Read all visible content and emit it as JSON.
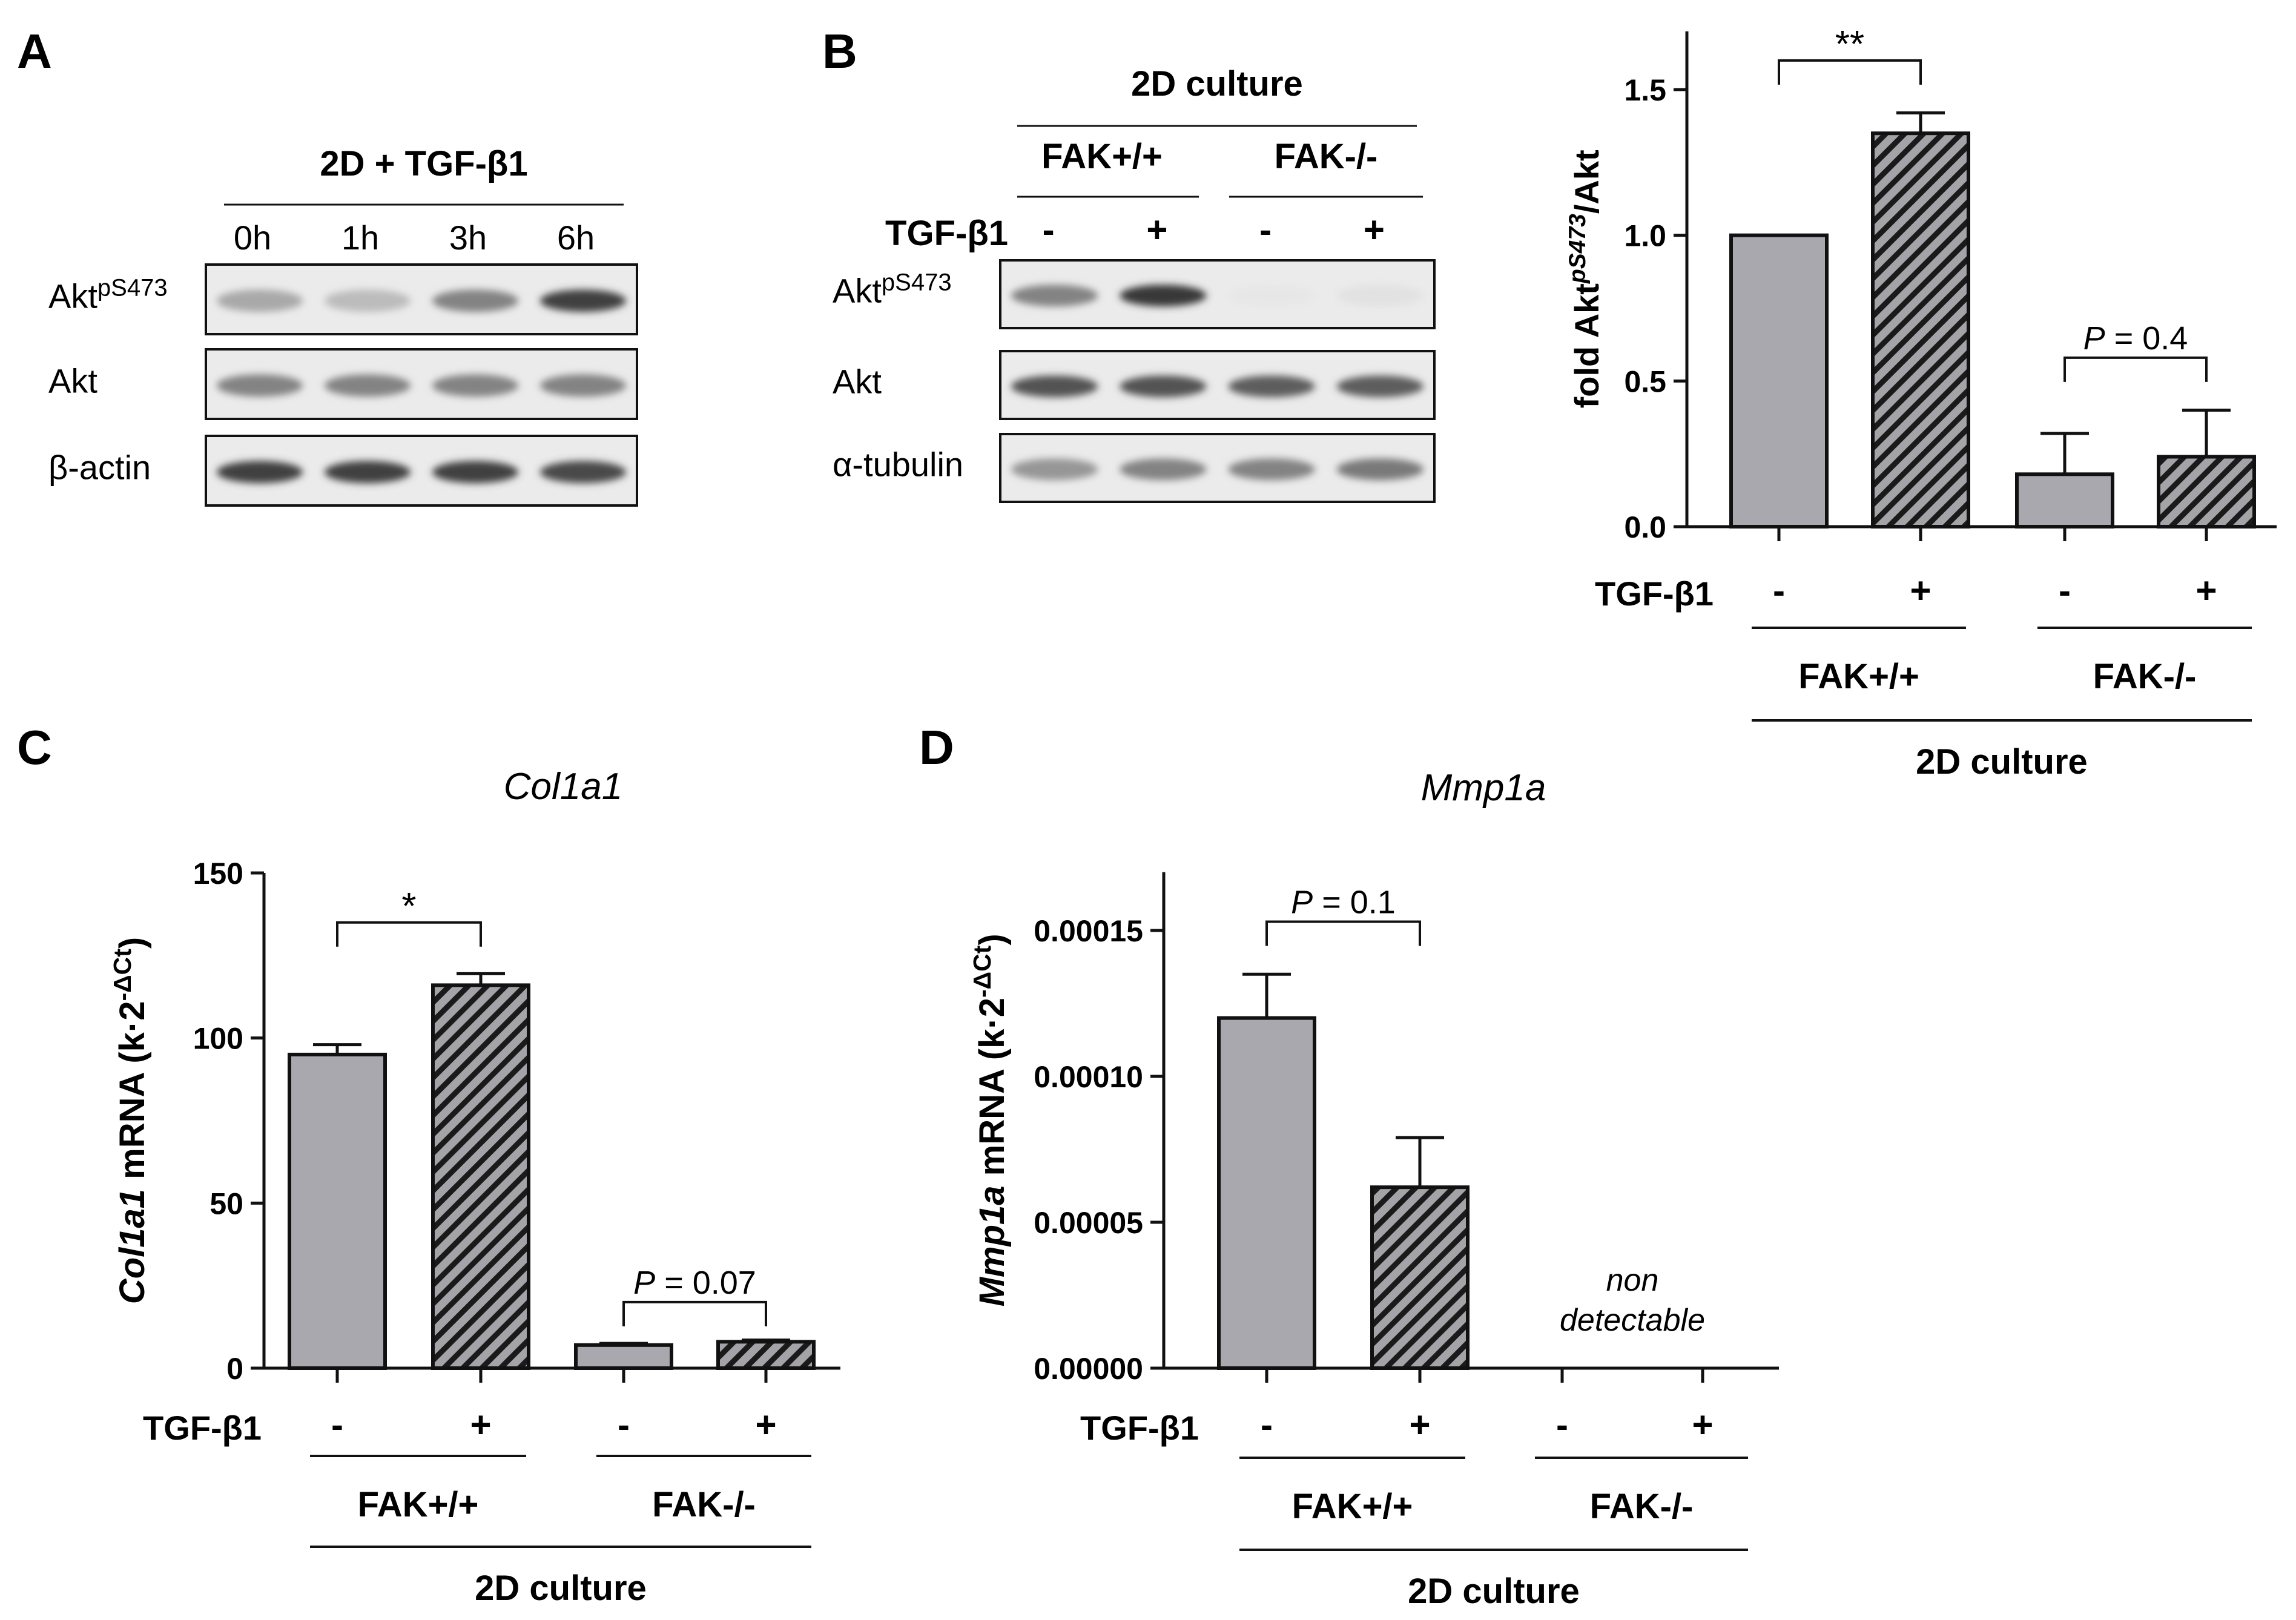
{
  "colors": {
    "gray_bar": "#a8a8ae",
    "blot_bg": "#ebebeb",
    "hatch_bg": "#a4a4a8",
    "text": "#111111"
  },
  "panels": {
    "A": {
      "letter": "A",
      "condition": "2D + TGF-β1",
      "timepoints": [
        "0h",
        "1h",
        "3h",
        "6h"
      ],
      "rows": [
        {
          "base": "Akt",
          "sup": "pS473",
          "band_intensity": [
            0.35,
            0.25,
            0.55,
            0.9
          ]
        },
        {
          "base": "Akt",
          "sup": "",
          "band_intensity": [
            0.55,
            0.55,
            0.55,
            0.55
          ]
        },
        {
          "base": "β-actin",
          "sup": "",
          "band_intensity": [
            0.9,
            0.9,
            0.9,
            0.85
          ]
        }
      ]
    },
    "B": {
      "letter": "B",
      "condition": "2D culture",
      "genotypes": [
        "FAK+/+",
        "FAK-/-"
      ],
      "treatment_label": "TGF-β1",
      "treatment_signs": [
        "-",
        "+",
        "-",
        "+"
      ],
      "rows": [
        {
          "base": "Akt",
          "sup": "pS473",
          "band_intensity": [
            0.55,
            0.95,
            0.02,
            0.05
          ]
        },
        {
          "base": "Akt",
          "sup": "",
          "band_intensity": [
            0.8,
            0.8,
            0.75,
            0.75
          ]
        },
        {
          "base": "α-tubulin",
          "sup": "",
          "band_intensity": [
            0.45,
            0.55,
            0.55,
            0.6
          ]
        }
      ]
    },
    "C": {
      "letter": "C"
    },
    "D": {
      "letter": "D"
    }
  },
  "chart_data": [
    {
      "id": "B-quant",
      "type": "bar",
      "title": "",
      "ylabel_parts": {
        "pre": "fold Akt",
        "sup": "pS473",
        "post": "/Akt"
      },
      "ylabel_italic": false,
      "yticks": [
        "0.0",
        "0.5",
        "1.0",
        "1.5"
      ],
      "ylim": [
        0,
        1.5
      ],
      "yaxis_top": 1.7,
      "categories": [
        "FAK+/+ -",
        "FAK+/+ +",
        "FAK-/- -",
        "FAK-/- +"
      ],
      "values": [
        1.0,
        1.35,
        0.18,
        0.24
      ],
      "errors": [
        0,
        0.07,
        0.14,
        0.16
      ],
      "hatched": [
        false,
        true,
        false,
        true
      ],
      "treatment_label": "TGF-β1",
      "treatment_signs": [
        "-",
        "+",
        "-",
        "+"
      ],
      "groups": [
        "FAK+/+",
        "FAK-/-"
      ],
      "culture_label": "2D culture",
      "annotations": [
        {
          "bars": [
            0,
            1
          ],
          "text": "**",
          "y": 1.6
        },
        {
          "bars": [
            2,
            3
          ],
          "text": "P = 0.4",
          "y": 0.58
        }
      ]
    },
    {
      "id": "C",
      "type": "bar",
      "title": "Col1a1",
      "ylabel_parts": {
        "pre": "Col1a1",
        "mid": " mRNA (k·2",
        "sup": "-ΔCt",
        "post": ")"
      },
      "ylabel_italic": false,
      "yticks": [
        "0",
        "50",
        "100",
        "150"
      ],
      "ylim": [
        0,
        150
      ],
      "yaxis_top": 150,
      "categories": [
        "FAK+/+ -",
        "FAK+/+ +",
        "FAK-/- -",
        "FAK-/- +"
      ],
      "values": [
        95,
        116,
        7,
        8
      ],
      "errors": [
        3,
        3.5,
        0.5,
        0.5
      ],
      "hatched": [
        false,
        true,
        false,
        true
      ],
      "treatment_label": "TGF-β1",
      "treatment_signs": [
        "-",
        "+",
        "-",
        "+"
      ],
      "groups": [
        "FAK+/+",
        "FAK-/-"
      ],
      "culture_label": "2D culture",
      "annotations": [
        {
          "bars": [
            0,
            1
          ],
          "text": "*",
          "y": 135
        },
        {
          "bars": [
            2,
            3
          ],
          "text": "P = 0.07",
          "y": 20
        }
      ]
    },
    {
      "id": "D",
      "type": "bar",
      "title": "Mmp1a",
      "ylabel_parts": {
        "pre": "Mmp1a",
        "mid": " mRNA (k·2",
        "sup": "-ΔCt",
        "post": ")"
      },
      "yticks": [
        "0.00000",
        "0.00005",
        "0.00010",
        "0.00015"
      ],
      "ylim": [
        0,
        0.00015
      ],
      "yaxis_top": 0.00017,
      "categories": [
        "FAK+/+ -",
        "FAK+/+ +",
        "FAK-/- -",
        "FAK-/- +"
      ],
      "values": [
        0.00012,
        6.2e-05,
        null,
        null
      ],
      "errors": [
        1.5e-05,
        1.7e-05,
        null,
        null
      ],
      "hatched": [
        false,
        true,
        false,
        true
      ],
      "treatment_label": "TGF-β1",
      "treatment_signs": [
        "-",
        "+",
        "-",
        "+"
      ],
      "groups": [
        "FAK+/+",
        "FAK-/-"
      ],
      "culture_label": "2D culture",
      "nd_text": [
        "non",
        "detectable"
      ],
      "annotations": [
        {
          "bars": [
            0,
            1
          ],
          "text": "P = 0.1",
          "y": 0.000153
        }
      ]
    }
  ]
}
